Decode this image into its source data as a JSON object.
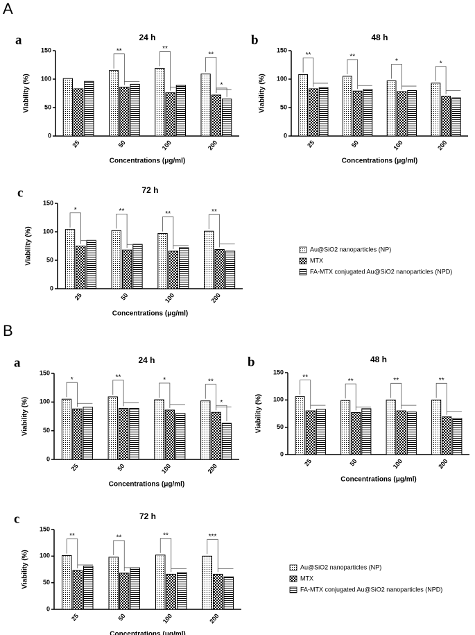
{
  "figure_panels": [
    "A",
    "B"
  ],
  "chart_data": [
    {
      "type": "bar",
      "panel": "a",
      "title": "24 h",
      "xlabel": "Concentrations (μg/ml)",
      "ylabel": "Viability (%)",
      "categories": [
        "25",
        "50",
        "100",
        "200"
      ],
      "ylim": [
        0,
        150
      ],
      "yticks": [
        0,
        50,
        100,
        150
      ],
      "series": [
        {
          "pattern": "dots",
          "values": [
            101,
            115,
            119,
            109
          ]
        },
        {
          "pattern": "checks",
          "values": [
            83,
            86,
            76,
            72
          ]
        },
        {
          "pattern": "stripes",
          "values": [
            96,
            91,
            89,
            65
          ]
        }
      ],
      "significance": [
        {
          "category": "50",
          "label": "**"
        },
        {
          "category": "100",
          "label": "**"
        },
        {
          "category": "200",
          "label": "**"
        },
        {
          "category": "200",
          "label": "*"
        }
      ]
    },
    {
      "type": "bar",
      "panel": "b",
      "title": "48 h",
      "xlabel": "Concentrations (μg/ml)",
      "ylabel": "Viability (%)",
      "categories": [
        "25",
        "50",
        "100",
        "200"
      ],
      "ylim": [
        0,
        150
      ],
      "yticks": [
        0,
        50,
        100,
        150
      ],
      "series": [
        {
          "pattern": "dots",
          "values": [
            108,
            105,
            97,
            93
          ]
        },
        {
          "pattern": "checks",
          "values": [
            83,
            79,
            78,
            70
          ]
        },
        {
          "pattern": "stripes",
          "values": [
            85,
            82,
            80,
            67
          ]
        }
      ],
      "significance": [
        {
          "category": "25",
          "label": "**"
        },
        {
          "category": "50",
          "label": "**"
        },
        {
          "category": "100",
          "label": "*"
        },
        {
          "category": "200",
          "label": "*"
        }
      ]
    },
    {
      "type": "bar",
      "panel": "c",
      "title": "72 h",
      "xlabel": "Concentrations (μg/ml)",
      "ylabel": "Viability (%)",
      "categories": [
        "25",
        "50",
        "100",
        "200"
      ],
      "ylim": [
        0,
        150
      ],
      "yticks": [
        0,
        50,
        100,
        150
      ],
      "series": [
        {
          "name": "Au@SiO2 nanoparticles (NP)",
          "pattern": "dots",
          "values": [
            104,
            102,
            97,
            101
          ]
        },
        {
          "name": "MTX",
          "pattern": "checks",
          "values": [
            75,
            68,
            66,
            69
          ]
        },
        {
          "name": "FA-MTX conjugated Au@SiO2 nanoparticles (NPD)",
          "pattern": "stripes",
          "values": [
            85,
            78,
            72,
            66
          ]
        }
      ],
      "significance": [
        {
          "category": "25",
          "label": "*"
        },
        {
          "category": "50",
          "label": "**"
        },
        {
          "category": "100",
          "label": "**"
        },
        {
          "category": "200",
          "label": "**"
        }
      ]
    },
    {
      "type": "bar",
      "panel": "a",
      "title": "24 h",
      "xlabel": "Concentrations (μg/ml)",
      "ylabel": "Viability (%)",
      "categories": [
        "25",
        "50",
        "100",
        "200"
      ],
      "ylim": [
        0,
        150
      ],
      "yticks": [
        0,
        50,
        100,
        150
      ],
      "series": [
        {
          "pattern": "dots",
          "values": [
            105,
            109,
            104,
            102
          ]
        },
        {
          "pattern": "checks",
          "values": [
            88,
            89,
            86,
            82
          ]
        },
        {
          "pattern": "stripes",
          "values": [
            91,
            89,
            80,
            63
          ]
        }
      ],
      "significance": [
        {
          "category": "25",
          "label": "*"
        },
        {
          "category": "50",
          "label": "**"
        },
        {
          "category": "100",
          "label": "*"
        },
        {
          "category": "200",
          "label": "**"
        },
        {
          "category": "200",
          "label": "*"
        }
      ]
    },
    {
      "type": "bar",
      "panel": "b",
      "title": "48 h",
      "xlabel": "Concentrations (μg/ml)",
      "ylabel": "Viability (%)",
      "categories": [
        "25",
        "50",
        "100",
        "200"
      ],
      "ylim": [
        0,
        150
      ],
      "yticks": [
        0,
        50,
        100,
        150
      ],
      "series": [
        {
          "pattern": "dots",
          "values": [
            106,
            99,
            100,
            100
          ]
        },
        {
          "pattern": "checks",
          "values": [
            80,
            77,
            80,
            69
          ]
        },
        {
          "pattern": "stripes",
          "values": [
            83,
            84,
            78,
            66
          ]
        }
      ],
      "significance": [
        {
          "category": "25",
          "label": "**"
        },
        {
          "category": "50",
          "label": "**"
        },
        {
          "category": "100",
          "label": "**"
        },
        {
          "category": "200",
          "label": "**"
        }
      ]
    },
    {
      "type": "bar",
      "panel": "c",
      "title": "72 h",
      "xlabel": "Concentrations (μg/ml)",
      "ylabel": "Viability (%)",
      "categories": [
        "25",
        "50",
        "100",
        "200"
      ],
      "ylim": [
        0,
        150
      ],
      "yticks": [
        0,
        50,
        100,
        150
      ],
      "series": [
        {
          "name": "Au@SiO2 nanoparticles (NP)",
          "pattern": "dots",
          "values": [
            101,
            98,
            102,
            100
          ]
        },
        {
          "name": "MTX",
          "pattern": "checks",
          "values": [
            73,
            68,
            66,
            66
          ]
        },
        {
          "name": "FA-MTX conjugated Au@SiO2 nanoparticles (NPD)",
          "pattern": "stripes",
          "values": [
            81,
            78,
            69,
            61
          ]
        }
      ],
      "significance": [
        {
          "category": "25",
          "label": "**"
        },
        {
          "category": "50",
          "label": "**"
        },
        {
          "category": "100",
          "label": "**"
        },
        {
          "category": "200",
          "label": "***"
        }
      ]
    }
  ]
}
